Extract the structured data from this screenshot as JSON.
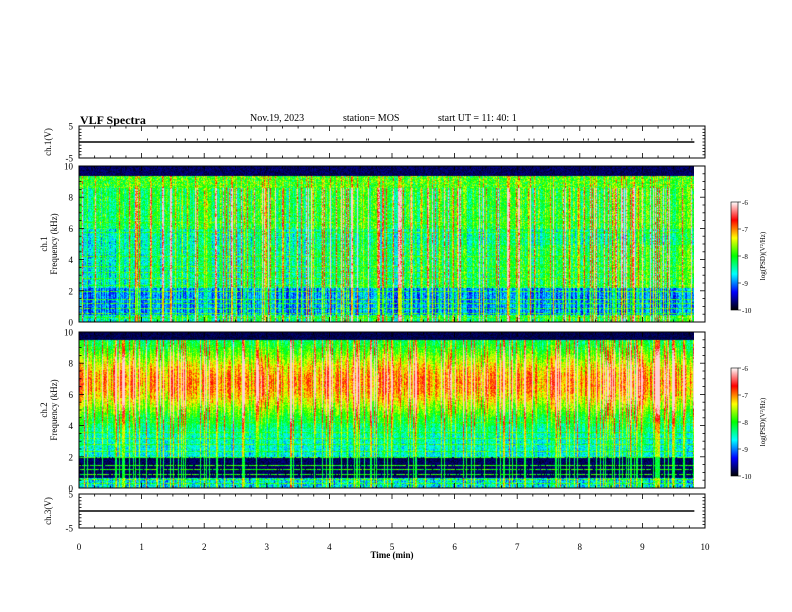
{
  "header": {
    "title": "VLF Spectra",
    "date": "Nov.19, 2023",
    "station": "station= MOS",
    "start_ut": "start UT =   11: 40: 1"
  },
  "chart_data": [
    {
      "type": "line",
      "panel": "ch1-waveform",
      "ylabel": "ch.1(V)",
      "ylim": [
        -5,
        5
      ],
      "y_ticks": [
        "5",
        "-5"
      ],
      "series": [
        {
          "values": [
            0,
            0
          ]
        }
      ],
      "xlim": [
        0,
        10
      ]
    },
    {
      "type": "heatmap",
      "panel": "ch1-spectrogram",
      "ylabel_top": "ch.1",
      "ylabel": "Frequency (kHz)",
      "ylim": [
        0,
        10
      ],
      "y_ticks": [
        "0",
        "2",
        "4",
        "6",
        "8",
        "10"
      ],
      "xlim": [
        0,
        10
      ],
      "data_extent_x": [
        0,
        9.83
      ],
      "colorbar": {
        "label": "log(PSD)(V²/Hz)",
        "range": [
          -10,
          -6
        ],
        "ticks": [
          "-6",
          "-7",
          "-8",
          "-9",
          "-10"
        ],
        "colormap": [
          "#ffffff",
          "#ff0000",
          "#ffff00",
          "#00ff00",
          "#00ffff",
          "#0000ff",
          "#000000"
        ]
      }
    },
    {
      "type": "heatmap",
      "panel": "ch2-spectrogram",
      "ylabel_top": "ch.2",
      "ylabel": "Frequency (kHz)",
      "ylim": [
        0,
        10
      ],
      "y_ticks": [
        "0",
        "2",
        "4",
        "6",
        "8",
        "10"
      ],
      "xlim": [
        0,
        10
      ],
      "data_extent_x": [
        0,
        9.83
      ],
      "colorbar": {
        "label": "log(PSD)(V²/Hz)",
        "range": [
          -10,
          -6
        ],
        "ticks": [
          "-6",
          "-7",
          "-8",
          "-9",
          "-10"
        ],
        "colormap": [
          "#ffffff",
          "#ff0000",
          "#ffff00",
          "#00ff00",
          "#00ffff",
          "#0000ff",
          "#000000"
        ]
      }
    },
    {
      "type": "line",
      "panel": "ch3-waveform",
      "ylabel": "ch.3(V)",
      "ylim": [
        -5,
        5
      ],
      "y_ticks": [
        "5",
        "-5"
      ],
      "series": [
        {
          "values": [
            0,
            0
          ]
        }
      ],
      "xlim": [
        0,
        10
      ],
      "xlabel": "Time (min)",
      "x_ticks": [
        "0",
        "1",
        "2",
        "3",
        "4",
        "5",
        "6",
        "7",
        "8",
        "9",
        "10"
      ]
    }
  ]
}
